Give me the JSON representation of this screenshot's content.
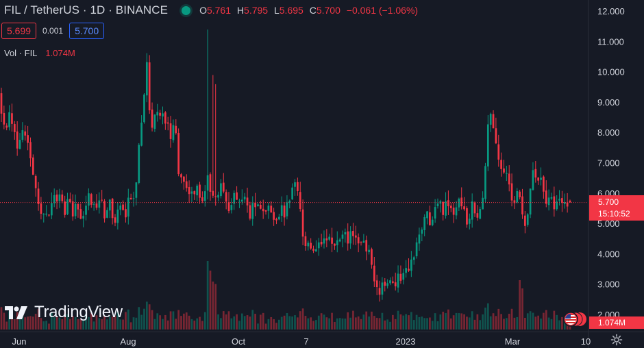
{
  "header": {
    "symbol": "FIL / TetherUS · 1D · BINANCE",
    "open_label": "O",
    "open": "5.761",
    "high_label": "H",
    "high": "5.795",
    "low_label": "L",
    "low": "5.695",
    "close_label": "C",
    "close": "5.700",
    "change": "−0.061 (−1.06%)"
  },
  "trade": {
    "sell_price": "5.699",
    "spread": "0.001",
    "buy_price": "5.700"
  },
  "volume_legend": {
    "label": "Vol · FIL",
    "value": "1.074M"
  },
  "price_label": {
    "price": "5.700",
    "countdown": "15:10:52"
  },
  "volume_label": "1.074M",
  "brand": "TradingView",
  "icons": [
    "market-status-icon",
    "tradingview-logo-icon",
    "flag-icon",
    "settings-gear-icon"
  ],
  "colors": {
    "up": "#089981",
    "down": "#f23645",
    "background": "#161a25",
    "buy": "#2962ff"
  },
  "chart_data": {
    "type": "candlestick",
    "y_axis_side": "right",
    "ylim": [
      1.6,
      12.3
    ],
    "yticks": [
      "12.000",
      "11.000",
      "10.000",
      "9.000",
      "8.000",
      "7.000",
      "6.000",
      "5.000",
      "4.000",
      "3.000",
      "2.000"
    ],
    "xticks": [
      "Jun",
      "Aug",
      "Oct",
      "7",
      "2023",
      "Mar",
      "10"
    ],
    "last_price": 5.7,
    "segments": [
      {
        "n": 8,
        "p": [
          9.3,
          8.5,
          8.1,
          8.4,
          8.6,
          8.0,
          7.6,
          7.9
        ]
      },
      {
        "n": 8,
        "p": [
          7.9,
          8.2,
          7.8,
          7.5,
          7.0,
          6.3,
          5.8,
          5.3
        ]
      },
      {
        "n": 6,
        "p": [
          5.3,
          5.5,
          5.0,
          5.6,
          6.0,
          5.9
        ]
      },
      {
        "n": 10,
        "p": [
          5.9,
          6.1,
          5.6,
          5.4,
          5.8,
          5.3,
          5.5,
          5.7,
          5.2,
          5.4
        ]
      },
      {
        "n": 10,
        "p": [
          5.4,
          5.8,
          6.0,
          5.6,
          5.4,
          5.8,
          6.1,
          5.3,
          5.5,
          5.9
        ]
      },
      {
        "n": 10,
        "p": [
          5.9,
          5.3,
          5.1,
          5.6,
          5.5,
          5.2,
          5.6,
          6.0,
          5.8,
          6.3
        ]
      },
      {
        "n": 4,
        "p": [
          6.3,
          8.0,
          9.0,
          10.5
        ]
      },
      {
        "n": 10,
        "p": [
          10.5,
          8.6,
          8.0,
          9.1,
          8.4,
          8.8,
          8.2,
          8.6,
          7.8,
          8.4
        ]
      },
      {
        "n": 10,
        "p": [
          8.4,
          8.0,
          6.4,
          6.6,
          6.1,
          6.0,
          6.3,
          5.8,
          6.1,
          6.0
        ]
      },
      {
        "n": 10,
        "p": [
          6.0,
          5.7,
          6.3,
          6.6,
          5.9,
          6.2,
          5.8,
          6.5,
          6.0,
          5.8
        ]
      },
      {
        "n": 10,
        "p": [
          5.8,
          5.5,
          5.7,
          6.1,
          5.8,
          5.5,
          5.9,
          5.7,
          5.3,
          5.6
        ]
      },
      {
        "n": 10,
        "p": [
          5.6,
          5.4,
          5.7,
          5.5,
          5.2,
          5.4,
          5.5,
          5.1,
          5.0,
          5.2
        ]
      },
      {
        "n": 8,
        "p": [
          5.2,
          5.5,
          5.3,
          5.7,
          6.0,
          6.3,
          6.0,
          5.6
        ]
      },
      {
        "n": 6,
        "p": [
          5.6,
          4.4,
          4.1,
          4.4,
          4.2,
          4.3
        ]
      },
      {
        "n": 10,
        "p": [
          4.3,
          4.5,
          4.3,
          4.4,
          4.4,
          4.5,
          4.3,
          4.6,
          4.4,
          4.5
        ]
      },
      {
        "n": 10,
        "p": [
          4.5,
          4.6,
          4.5,
          4.7,
          4.4,
          4.5,
          4.4,
          4.3,
          4.2,
          4.1
        ]
      },
      {
        "n": 4,
        "p": [
          4.1,
          3.5,
          2.9,
          2.8
        ]
      },
      {
        "n": 8,
        "p": [
          2.8,
          3.0,
          2.9,
          3.0,
          3.1,
          3.0,
          3.2,
          3.2
        ]
      },
      {
        "n": 8,
        "p": [
          3.2,
          3.4,
          3.5,
          3.6,
          3.9,
          4.3,
          4.6,
          4.9
        ]
      },
      {
        "n": 8,
        "p": [
          4.9,
          5.1,
          5.3,
          5.0,
          5.6,
          5.5,
          5.7,
          5.4
        ]
      },
      {
        "n": 10,
        "p": [
          5.4,
          5.8,
          5.5,
          5.7,
          5.3,
          5.6,
          5.8,
          5.4,
          5.0,
          5.3
        ]
      },
      {
        "n": 10,
        "p": [
          5.3,
          5.7,
          5.4,
          5.1,
          5.5,
          6.2,
          8.0,
          8.6,
          8.3,
          7.8
        ]
      },
      {
        "n": 10,
        "p": [
          7.8,
          7.2,
          6.6,
          6.9,
          6.3,
          6.0,
          5.5,
          6.1,
          5.8,
          5.3
        ]
      },
      {
        "n": 8,
        "p": [
          5.3,
          5.0,
          5.6,
          6.4,
          6.8,
          6.2,
          6.5,
          5.9
        ]
      },
      {
        "n": 10,
        "p": [
          5.9,
          5.7,
          6.0,
          5.6,
          5.4,
          5.8,
          5.5,
          5.6,
          5.7,
          5.75
        ]
      }
    ]
  }
}
